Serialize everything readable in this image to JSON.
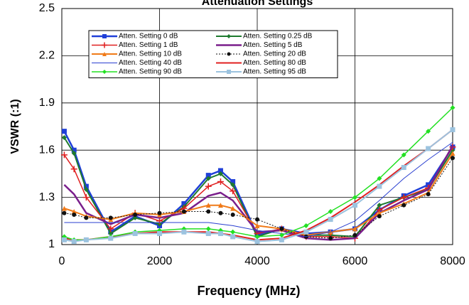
{
  "chart_data": {
    "type": "line",
    "title": "Attenuation Settings",
    "x_label": "Frequency (MHz)",
    "y_label": "VSWR (:1)",
    "xlim": [
      0,
      8000
    ],
    "xticks": [
      0,
      2000,
      4000,
      6000,
      8000
    ],
    "ylim": [
      1,
      2.5
    ],
    "yticks": [
      1,
      1.3,
      1.6,
      1.9,
      2.2,
      2.5
    ],
    "grid": true,
    "x": [
      50,
      250,
      500,
      1000,
      1500,
      2000,
      2500,
      3000,
      3250,
      3500,
      4000,
      4500,
      5000,
      5500,
      6000,
      6500,
      7000,
      7500,
      8000
    ],
    "series": [
      {
        "name": "Atten. Setting 0 dB",
        "color": "#1f3fd8",
        "marker": "square",
        "width": 2.5,
        "values": [
          1.72,
          1.6,
          1.37,
          1.08,
          1.18,
          1.12,
          1.26,
          1.44,
          1.47,
          1.4,
          1.06,
          1.1,
          1.07,
          1.08,
          1.1,
          1.22,
          1.31,
          1.38,
          1.62
        ]
      },
      {
        "name": "Atten. Setting 0.25 dB",
        "color": "#1e7a2e",
        "marker": "diamond",
        "width": 2,
        "values": [
          1.68,
          1.58,
          1.35,
          1.07,
          1.17,
          1.13,
          1.24,
          1.42,
          1.45,
          1.38,
          1.05,
          1.1,
          1.06,
          1.06,
          1.05,
          1.25,
          1.3,
          1.35,
          1.6
        ]
      },
      {
        "name": "Atten. Setting 1 dB",
        "color": "#e02020",
        "marker": "plus",
        "width": 1.5,
        "values": [
          1.57,
          1.48,
          1.3,
          1.1,
          1.2,
          1.15,
          1.23,
          1.37,
          1.4,
          1.34,
          1.07,
          1.1,
          1.05,
          1.05,
          1.04,
          1.22,
          1.3,
          1.36,
          1.62
        ]
      },
      {
        "name": "Atten. Setting 5 dB",
        "color": "#7a1f8c",
        "marker": "none",
        "width": 2.5,
        "values": [
          1.38,
          1.32,
          1.2,
          1.13,
          1.19,
          1.17,
          1.2,
          1.31,
          1.33,
          1.28,
          1.08,
          1.09,
          1.04,
          1.03,
          1.04,
          1.2,
          1.28,
          1.35,
          1.63
        ]
      },
      {
        "name": "Atten. Setting 10 dB",
        "color": "#f07a18",
        "marker": "triangle",
        "width": 2,
        "values": [
          1.23,
          1.21,
          1.18,
          1.16,
          1.2,
          1.19,
          1.21,
          1.25,
          1.25,
          1.23,
          1.12,
          1.1,
          1.06,
          1.08,
          1.1,
          1.2,
          1.26,
          1.33,
          1.58
        ]
      },
      {
        "name": "Atten. Setting 20 dB",
        "color": "#111111",
        "marker": "circle",
        "width": 1,
        "line_style": "dotted",
        "values": [
          1.2,
          1.19,
          1.17,
          1.17,
          1.19,
          1.2,
          1.21,
          1.21,
          1.2,
          1.19,
          1.16,
          1.1,
          1.05,
          1.04,
          1.06,
          1.18,
          1.25,
          1.32,
          1.55
        ]
      },
      {
        "name": "Atten. Setting 40 dB",
        "color": "#2a3fd0",
        "marker": "none",
        "width": 1,
        "values": [
          1.14,
          1.14,
          1.14,
          1.14,
          1.14,
          1.14,
          1.14,
          1.14,
          1.13,
          1.12,
          1.09,
          1.07,
          1.05,
          1.08,
          1.15,
          1.28,
          1.42,
          1.54,
          1.65
        ]
      },
      {
        "name": "Atten. Setting 80 dB",
        "color": "#e02020",
        "marker": "none",
        "width": 2,
        "values": [
          1.04,
          1.03,
          1.03,
          1.05,
          1.07,
          1.08,
          1.08,
          1.08,
          1.07,
          1.06,
          1.03,
          1.04,
          1.09,
          1.17,
          1.27,
          1.38,
          1.5,
          1.61,
          1.73
        ]
      },
      {
        "name": "Atten. Setting 90 dB",
        "color": "#22e022",
        "marker": "diamond",
        "width": 1.5,
        "values": [
          1.05,
          1.03,
          1.03,
          1.05,
          1.08,
          1.09,
          1.1,
          1.1,
          1.09,
          1.08,
          1.05,
          1.06,
          1.12,
          1.21,
          1.3,
          1.42,
          1.57,
          1.72,
          1.87
        ]
      },
      {
        "name": "Atten. Setting 95 dB",
        "color": "#9cc3df",
        "marker": "square",
        "width": 2,
        "values": [
          1.03,
          1.02,
          1.03,
          1.04,
          1.07,
          1.07,
          1.08,
          1.07,
          1.07,
          1.05,
          1.02,
          1.03,
          1.08,
          1.16,
          1.25,
          1.37,
          1.49,
          1.61,
          1.73
        ]
      }
    ]
  }
}
